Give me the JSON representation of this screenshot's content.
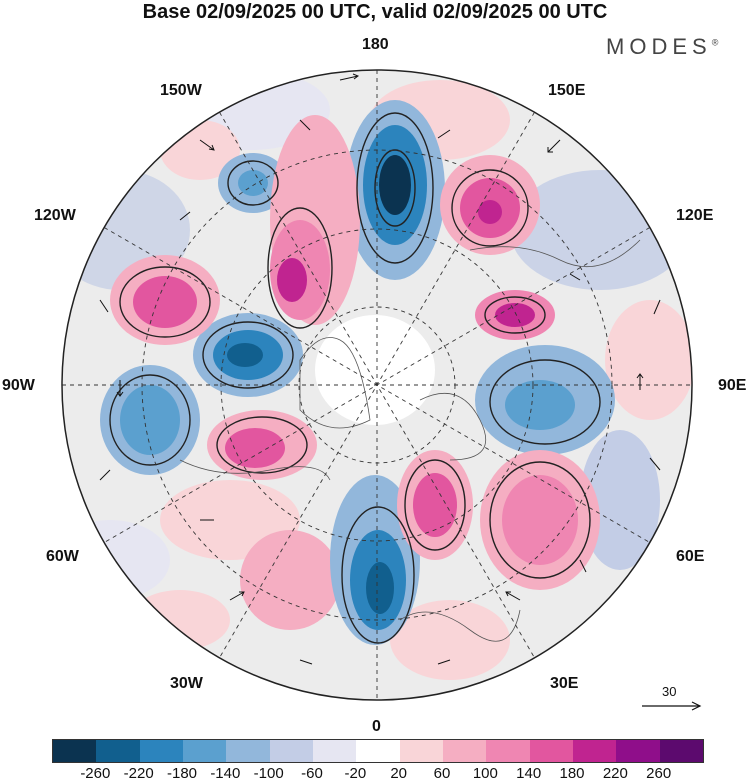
{
  "header": {
    "title": "Base 02/09/2025 00 UTC, valid 02/09/2025 00 UTC",
    "brand": "MODES",
    "brand_mark": "®"
  },
  "map": {
    "projection": "north polar stereographic",
    "longitude_labels": [
      "180",
      "150E",
      "120E",
      "90E",
      "60E",
      "30E",
      "0",
      "30W",
      "60W",
      "90W",
      "120W",
      "150W"
    ],
    "vector_reference": {
      "value": "30"
    }
  },
  "colorbar": {
    "colors": [
      "#0b3350",
      "#115f8e",
      "#2c84bd",
      "#5ba0cf",
      "#92b7db",
      "#c3cde6",
      "#e6e6f2",
      "#ffffff",
      "#f9d5d8",
      "#f5aec2",
      "#ef86b2",
      "#e2569f",
      "#c02490",
      "#8f0e8a",
      "#5c0a6e"
    ],
    "ticks": [
      "-260",
      "-220",
      "-180",
      "-140",
      "-100",
      "-60",
      "-20",
      "20",
      "60",
      "100",
      "140",
      "180",
      "220",
      "260"
    ]
  }
}
